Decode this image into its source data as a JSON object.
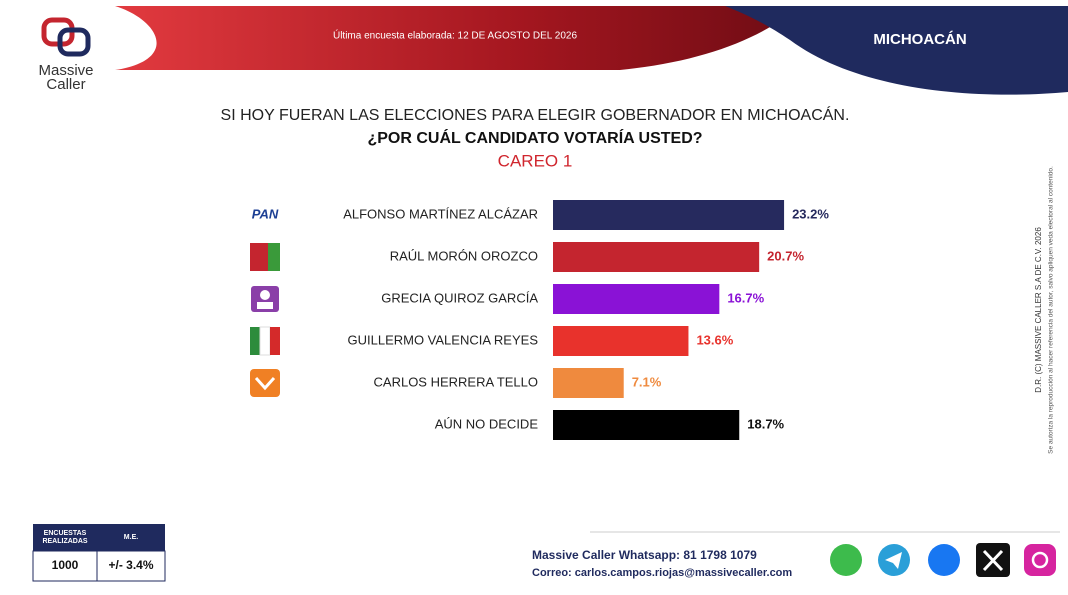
{
  "logo": {
    "line1": "Massive",
    "line2": "Caller"
  },
  "header": {
    "survey_date": "Última encuesta elaborada: 12 DE AGOSTO DEL 2026",
    "region": "MICHOACÁN"
  },
  "chart_data": {
    "type": "hbar",
    "title": "SI HOY FUERAN LAS ELECCIONES PARA ELEGIR GOBERNADOR EN MICHOACÁN.",
    "subtitle": "¿POR CUÁL CANDIDATO VOTARÍA USTED?",
    "annotation": "CAREO 1",
    "pan_logo": "PAN",
    "categories": [
      "ALFONSO MARTÍNEZ ALCÁZAR",
      "RAÚL MORÓN OROZCO",
      "GRECIA QUIROZ GARCÍA",
      "GUILLERMO VALENCIA REYES",
      "CARLOS HERRERA TELLO",
      "AÚN NO DECIDE"
    ],
    "values": [
      23.2,
      20.7,
      16.7,
      13.6,
      7.1,
      18.7
    ],
    "value_labels": [
      "23.2%",
      "20.7%",
      "16.7%",
      "13.6%",
      "7.1%",
      "18.7%"
    ],
    "colors": [
      "#262a5e",
      "#c4252f",
      "#8a12d6",
      "#e8322c",
      "#ef8a3e",
      "#000000"
    ]
  },
  "side_note": {
    "rights": "D.R. (C) MASSIVE CALLER S.A DE C.V. 2026",
    "permission": "Se autoriza la reproducción al hacer referencia del autor, salvo apliquen veda electoral al contenido."
  },
  "table": {
    "headers": [
      "ENCUESTAS REALIZADAS",
      "M.E."
    ],
    "rows": [
      [
        1000,
        "+/- 3.4%"
      ]
    ]
  },
  "footer": {
    "whatsapp": "Massive Caller Whatsapp: 81 1798 1079",
    "email": "Correo: carlos.campos.riojas@massivecaller.com"
  }
}
